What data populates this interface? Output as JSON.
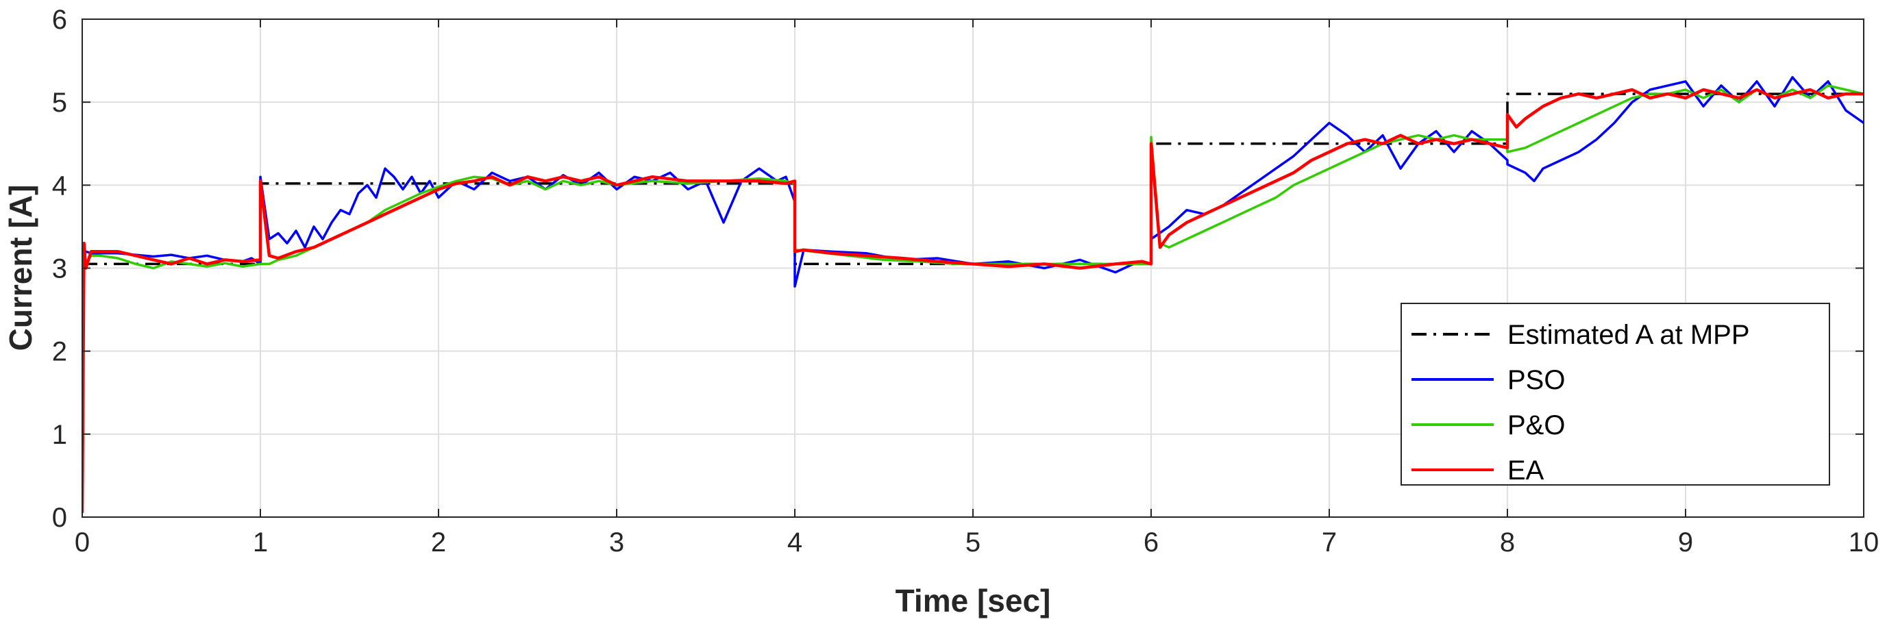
{
  "chart_data": {
    "type": "line",
    "title": "",
    "xlabel": "Time [sec]",
    "ylabel": "Current [A]",
    "xlim": [
      0,
      10
    ],
    "ylim": [
      0,
      6
    ],
    "xticks": [
      "0",
      "1",
      "2",
      "3",
      "4",
      "5",
      "6",
      "7",
      "8",
      "9",
      "10"
    ],
    "yticks": [
      "0",
      "1",
      "2",
      "3",
      "4",
      "5",
      "6"
    ],
    "grid": true,
    "legend_position": "lower-right",
    "series": [
      {
        "name": "Estimated A at MPP",
        "color": "#000000",
        "style": "dash-dot",
        "x": [
          0,
          1,
          1,
          4,
          4,
          6,
          6,
          8,
          8,
          10
        ],
        "y": [
          3.05,
          3.05,
          4.02,
          4.02,
          3.05,
          3.05,
          4.5,
          4.5,
          5.1,
          5.1
        ]
      },
      {
        "name": "PSO",
        "color": "#0000ff",
        "style": "solid",
        "x": [
          0,
          0.02,
          0.05,
          0.1,
          0.2,
          0.3,
          0.4,
          0.5,
          0.6,
          0.7,
          0.8,
          0.9,
          0.95,
          1.0,
          1.0,
          1.05,
          1.1,
          1.15,
          1.2,
          1.25,
          1.3,
          1.35,
          1.4,
          1.45,
          1.5,
          1.55,
          1.6,
          1.65,
          1.7,
          1.75,
          1.8,
          1.85,
          1.9,
          1.95,
          2.0,
          2.1,
          2.2,
          2.3,
          2.4,
          2.5,
          2.6,
          2.7,
          2.8,
          2.9,
          3.0,
          3.1,
          3.2,
          3.3,
          3.4,
          3.5,
          3.6,
          3.7,
          3.8,
          3.9,
          3.95,
          4.0,
          4.0,
          4.05,
          4.2,
          4.4,
          4.6,
          4.8,
          5.0,
          5.2,
          5.4,
          5.6,
          5.8,
          5.9,
          6.0,
          6.0,
          6.1,
          6.2,
          6.3,
          6.4,
          6.5,
          6.6,
          6.7,
          6.8,
          6.9,
          7.0,
          7.1,
          7.2,
          7.3,
          7.4,
          7.5,
          7.6,
          7.7,
          7.8,
          7.9,
          8.0,
          8.0,
          8.1,
          8.15,
          8.2,
          8.3,
          8.4,
          8.5,
          8.6,
          8.7,
          8.8,
          8.9,
          9.0,
          9.1,
          9.2,
          9.3,
          9.4,
          9.5,
          9.6,
          9.7,
          9.8,
          9.9,
          10.0
        ],
        "y": [
          3.25,
          3.2,
          3.18,
          3.18,
          3.18,
          3.16,
          3.14,
          3.16,
          3.12,
          3.15,
          3.1,
          3.08,
          3.12,
          3.05,
          4.1,
          3.35,
          3.42,
          3.3,
          3.45,
          3.25,
          3.5,
          3.35,
          3.55,
          3.7,
          3.65,
          3.9,
          4.0,
          3.85,
          4.2,
          4.1,
          3.95,
          4.1,
          3.9,
          4.05,
          3.85,
          4.05,
          3.95,
          4.15,
          4.05,
          4.1,
          3.95,
          4.12,
          4.0,
          4.15,
          3.95,
          4.1,
          4.05,
          4.15,
          3.95,
          4.05,
          3.55,
          4.05,
          4.2,
          4.05,
          4.1,
          3.8,
          2.78,
          3.22,
          3.2,
          3.18,
          3.1,
          3.12,
          3.05,
          3.08,
          3.0,
          3.1,
          2.95,
          3.05,
          3.05,
          3.35,
          3.5,
          3.7,
          3.65,
          3.75,
          3.9,
          4.05,
          4.2,
          4.35,
          4.55,
          4.75,
          4.6,
          4.4,
          4.6,
          4.2,
          4.5,
          4.65,
          4.4,
          4.65,
          4.5,
          4.3,
          4.25,
          4.15,
          4.05,
          4.2,
          4.3,
          4.4,
          4.55,
          4.75,
          5.0,
          5.15,
          5.2,
          5.25,
          4.95,
          5.2,
          5.0,
          5.25,
          4.95,
          5.3,
          5.05,
          5.25,
          4.9,
          4.75
        ]
      },
      {
        "name": "P&O",
        "color": "#33cc00",
        "style": "solid",
        "x": [
          0,
          0.05,
          0.1,
          0.2,
          0.3,
          0.4,
          0.5,
          0.6,
          0.7,
          0.8,
          0.9,
          1.0,
          1.05,
          1.1,
          1.2,
          1.3,
          1.4,
          1.5,
          1.6,
          1.7,
          1.8,
          1.9,
          2.0,
          2.1,
          2.2,
          2.3,
          2.4,
          2.5,
          2.6,
          2.7,
          2.8,
          2.9,
          3.0,
          3.2,
          3.4,
          3.6,
          3.8,
          3.95,
          4.0,
          4.0,
          4.1,
          4.3,
          4.5,
          4.7,
          4.9,
          5.1,
          5.3,
          5.5,
          5.7,
          5.9,
          6.0,
          6.0,
          6.05,
          6.1,
          6.2,
          6.3,
          6.4,
          6.5,
          6.6,
          6.7,
          6.8,
          6.9,
          7.0,
          7.1,
          7.2,
          7.3,
          7.4,
          7.5,
          7.6,
          7.7,
          7.8,
          7.9,
          8.0,
          8.0,
          8.1,
          8.2,
          8.3,
          8.4,
          8.5,
          8.6,
          8.7,
          8.8,
          8.9,
          9.0,
          9.1,
          9.2,
          9.3,
          9.4,
          9.5,
          9.6,
          9.7,
          9.8,
          9.9,
          10.0
        ],
        "y": [
          3.0,
          3.15,
          3.15,
          3.12,
          3.05,
          3.0,
          3.08,
          3.05,
          3.02,
          3.06,
          3.02,
          3.05,
          3.05,
          3.1,
          3.15,
          3.25,
          3.35,
          3.45,
          3.55,
          3.7,
          3.8,
          3.9,
          3.98,
          4.05,
          4.1,
          4.08,
          4.0,
          4.05,
          3.95,
          4.05,
          4.0,
          4.05,
          4.0,
          4.05,
          4.02,
          4.05,
          4.08,
          4.05,
          4.02,
          3.22,
          3.2,
          3.15,
          3.1,
          3.08,
          3.05,
          3.05,
          3.05,
          3.05,
          3.05,
          3.05,
          3.05,
          4.58,
          3.3,
          3.25,
          3.35,
          3.45,
          3.55,
          3.65,
          3.75,
          3.85,
          4.0,
          4.1,
          4.2,
          4.3,
          4.4,
          4.5,
          4.55,
          4.6,
          4.55,
          4.6,
          4.55,
          4.55,
          4.55,
          4.4,
          4.45,
          4.55,
          4.65,
          4.75,
          4.85,
          4.95,
          5.05,
          5.1,
          5.1,
          5.15,
          5.05,
          5.15,
          5.0,
          5.15,
          5.05,
          5.15,
          5.05,
          5.2,
          5.15,
          5.1
        ]
      },
      {
        "name": "EA",
        "color": "#ff0000",
        "style": "solid",
        "x": [
          0,
          0.01,
          0.02,
          0.05,
          0.1,
          0.2,
          0.3,
          0.4,
          0.5,
          0.6,
          0.7,
          0.8,
          0.9,
          1.0,
          1.0,
          1.05,
          1.1,
          1.2,
          1.3,
          1.4,
          1.5,
          1.6,
          1.7,
          1.8,
          1.9,
          2.0,
          2.1,
          2.2,
          2.3,
          2.4,
          2.5,
          2.6,
          2.7,
          2.8,
          2.9,
          3.0,
          3.2,
          3.4,
          3.6,
          3.8,
          3.95,
          4.0,
          4.0,
          4.05,
          4.2,
          4.4,
          4.6,
          4.8,
          5.0,
          5.2,
          5.4,
          5.6,
          5.8,
          5.95,
          6.0,
          6.0,
          6.05,
          6.1,
          6.2,
          6.3,
          6.4,
          6.5,
          6.6,
          6.7,
          6.8,
          6.9,
          7.0,
          7.1,
          7.2,
          7.3,
          7.4,
          7.5,
          7.6,
          7.7,
          7.8,
          7.9,
          8.0,
          8.0,
          8.05,
          8.1,
          8.2,
          8.3,
          8.4,
          8.5,
          8.6,
          8.7,
          8.8,
          8.9,
          9.0,
          9.1,
          9.2,
          9.3,
          9.4,
          9.5,
          9.6,
          9.7,
          9.8,
          9.9,
          10.0
        ],
        "y": [
          0.05,
          3.3,
          3.0,
          3.2,
          3.2,
          3.2,
          3.15,
          3.1,
          3.05,
          3.12,
          3.05,
          3.1,
          3.08,
          3.1,
          4.05,
          3.15,
          3.12,
          3.2,
          3.25,
          3.35,
          3.45,
          3.55,
          3.65,
          3.75,
          3.85,
          3.95,
          4.02,
          4.05,
          4.1,
          4.0,
          4.1,
          4.05,
          4.1,
          4.05,
          4.1,
          4.0,
          4.1,
          4.05,
          4.05,
          4.05,
          4.02,
          4.05,
          3.2,
          3.22,
          3.18,
          3.15,
          3.12,
          3.08,
          3.05,
          3.02,
          3.05,
          3.0,
          3.05,
          3.08,
          3.05,
          4.5,
          3.25,
          3.4,
          3.55,
          3.65,
          3.75,
          3.85,
          3.95,
          4.05,
          4.15,
          4.3,
          4.4,
          4.5,
          4.55,
          4.5,
          4.6,
          4.5,
          4.55,
          4.5,
          4.55,
          4.5,
          4.45,
          4.85,
          4.7,
          4.8,
          4.95,
          5.05,
          5.1,
          5.05,
          5.1,
          5.15,
          5.05,
          5.1,
          5.05,
          5.15,
          5.1,
          5.05,
          5.15,
          5.05,
          5.1,
          5.15,
          5.05,
          5.1,
          5.1
        ]
      }
    ]
  }
}
